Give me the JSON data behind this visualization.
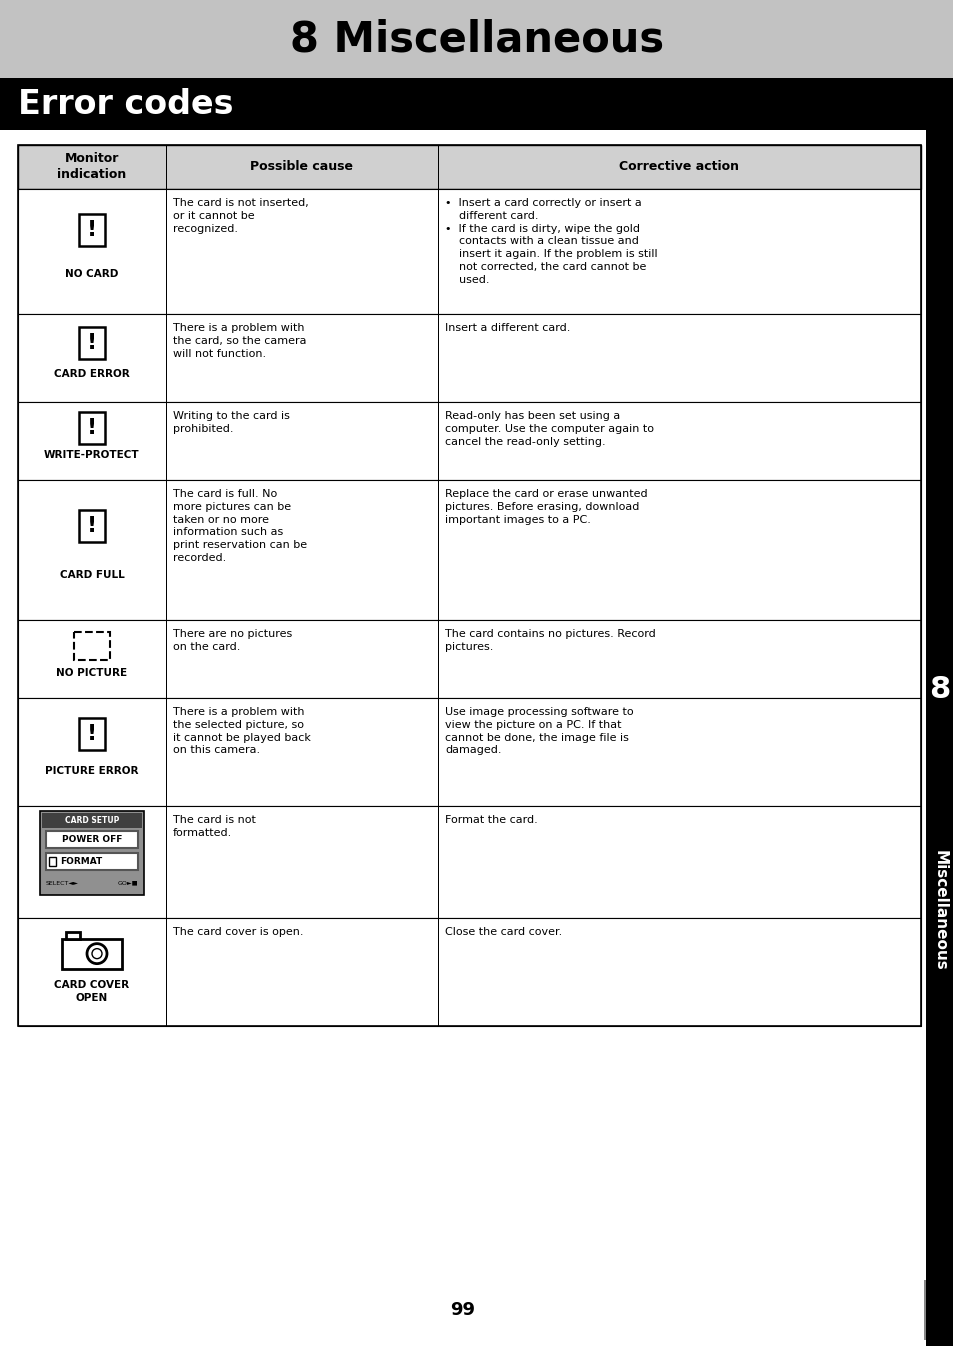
{
  "page_title": "8 Miscellaneous",
  "section_title": "Error codes",
  "page_number": "99",
  "bg_color": "#ffffff",
  "header_bg": "#c0c0c0",
  "section_bg": "#000000",
  "rows": [
    {
      "icon": "exclaim_card",
      "label": "NO CARD",
      "cause": "The card is not inserted,\nor it cannot be\nrecognized.",
      "action": "•  Insert a card correctly or insert a\n    different card.\n•  If the card is dirty, wipe the gold\n    contacts with a clean tissue and\n    insert it again. If the problem is still\n    not corrected, the card cannot be\n    used."
    },
    {
      "icon": "exclaim_card",
      "label": "CARD ERROR",
      "cause": "There is a problem with\nthe card, so the camera\nwill not function.",
      "action": "Insert a different card."
    },
    {
      "icon": "exclaim_card",
      "label": "WRITE-PROTECT",
      "cause": "Writing to the card is\nprohibited.",
      "action": "Read-only has been set using a\ncomputer. Use the computer again to\ncancel the read-only setting."
    },
    {
      "icon": "exclaim_card",
      "label": "CARD FULL",
      "cause": "The card is full. No\nmore pictures can be\ntaken or no more\ninformation such as\nprint reservation can be\nrecorded.",
      "action": "Replace the card or erase unwanted\npictures. Before erasing, download\nimportant images to a PC."
    },
    {
      "icon": "dashed_rect",
      "label": "NO PICTURE",
      "cause": "There are no pictures\non the card.",
      "action": "The card contains no pictures. Record\npictures."
    },
    {
      "icon": "exclaim_card",
      "label": "PICTURE ERROR",
      "cause": "There is a problem with\nthe selected picture, so\nit cannot be played back\non this camera.",
      "action": "Use image processing software to\nview the picture on a PC. If that\ncannot be done, the image file is\ndamaged."
    },
    {
      "icon": "menu_screen",
      "label": "",
      "cause": "The card is not\nformatted.",
      "action": "Format the card."
    },
    {
      "icon": "card_cover",
      "label": "CARD COVER\nOPEN",
      "cause": "The card cover is open.",
      "action": "Close the card cover."
    }
  ]
}
